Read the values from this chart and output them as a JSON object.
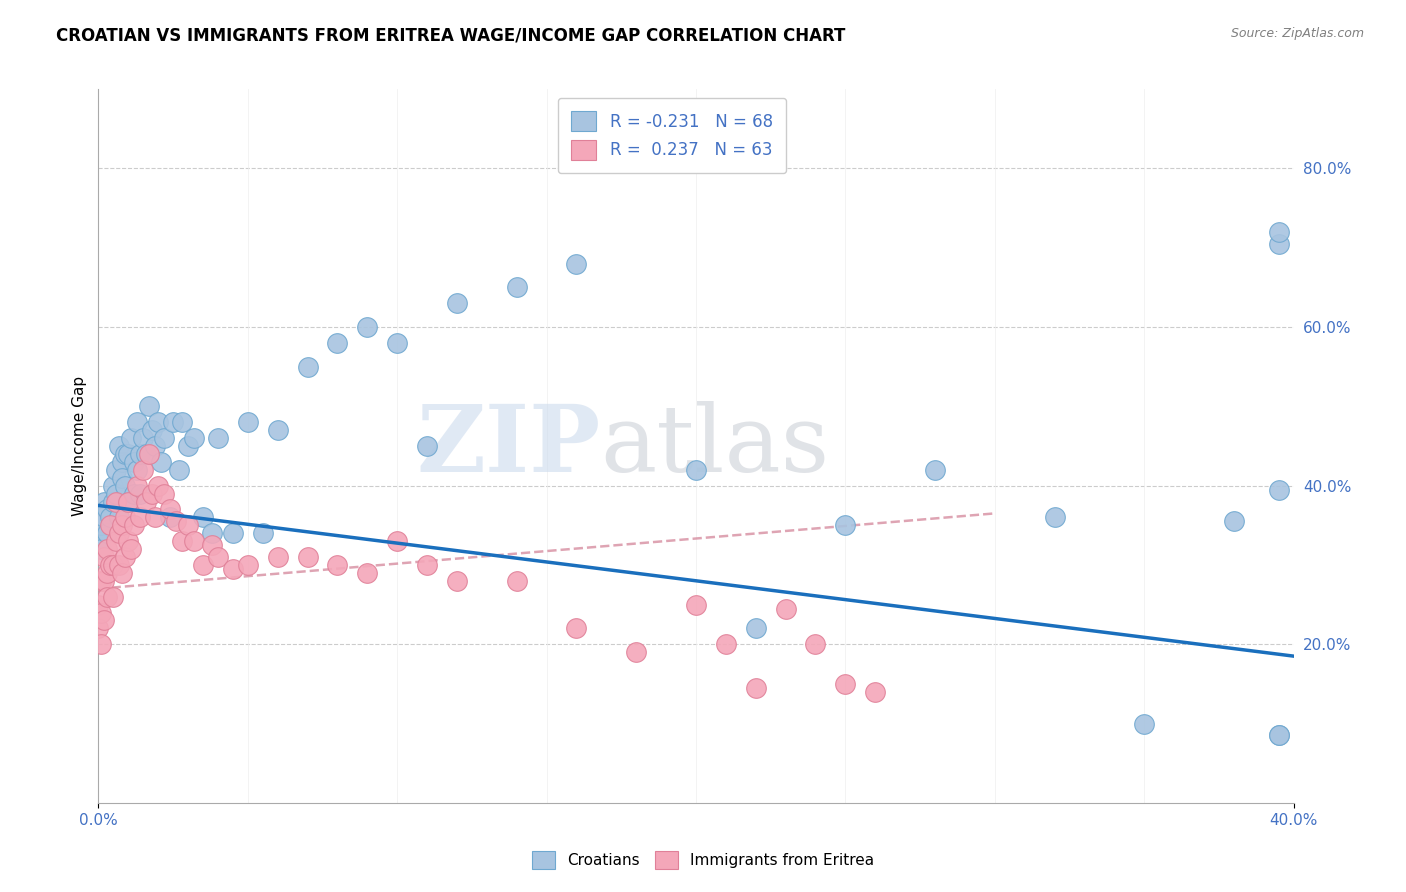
{
  "title": "CROATIAN VS IMMIGRANTS FROM ERITREA WAGE/INCOME GAP CORRELATION CHART",
  "source": "Source: ZipAtlas.com",
  "ylabel": "Wage/Income Gap",
  "croatian_color": "#a8c4e0",
  "eritrea_color": "#f4a7b9",
  "croatian_edge": "#6fa8d0",
  "eritrea_edge": "#e08098",
  "blue_line_color": "#1a6fbd",
  "pink_line_color": "#d4869a",
  "legend_croatians": "Croatians",
  "legend_eritrea": "Immigrants from Eritrea",
  "croatian_R": -0.231,
  "croatian_N": 68,
  "eritrea_R": 0.237,
  "eritrea_N": 63,
  "watermark_top": "ZIP",
  "watermark_bottom": "atlas",
  "xlim": [
    0.0,
    0.4
  ],
  "ylim": [
    0.0,
    0.9
  ],
  "right_yticks": [
    0.2,
    0.4,
    0.6,
    0.8
  ],
  "right_yticklabels": [
    "20.0%",
    "40.0%",
    "60.0%",
    "80.0%"
  ],
  "blue_line_x": [
    0.0,
    0.4
  ],
  "blue_line_y": [
    0.375,
    0.185
  ],
  "pink_line_x": [
    0.0,
    0.3
  ],
  "pink_line_y": [
    0.27,
    0.365
  ],
  "croatian_points_x": [
    0.0,
    0.001,
    0.001,
    0.002,
    0.002,
    0.003,
    0.003,
    0.004,
    0.005,
    0.005,
    0.006,
    0.006,
    0.007,
    0.007,
    0.008,
    0.008,
    0.009,
    0.009,
    0.01,
    0.01,
    0.011,
    0.012,
    0.012,
    0.013,
    0.013,
    0.014,
    0.014,
    0.015,
    0.016,
    0.017,
    0.018,
    0.019,
    0.02,
    0.021,
    0.022,
    0.024,
    0.025,
    0.027,
    0.028,
    0.03,
    0.032,
    0.035,
    0.038,
    0.04,
    0.045,
    0.05,
    0.055,
    0.06,
    0.07,
    0.08,
    0.09,
    0.1,
    0.11,
    0.12,
    0.14,
    0.16,
    0.2,
    0.22,
    0.25,
    0.28,
    0.32,
    0.35,
    0.38,
    0.395,
    0.395,
    0.395,
    0.395,
    0.395
  ],
  "croatian_points_y": [
    0.33,
    0.35,
    0.32,
    0.38,
    0.36,
    0.37,
    0.34,
    0.36,
    0.4,
    0.38,
    0.42,
    0.39,
    0.45,
    0.36,
    0.43,
    0.41,
    0.44,
    0.4,
    0.44,
    0.38,
    0.46,
    0.43,
    0.39,
    0.48,
    0.42,
    0.44,
    0.39,
    0.46,
    0.44,
    0.5,
    0.47,
    0.45,
    0.48,
    0.43,
    0.46,
    0.36,
    0.48,
    0.42,
    0.48,
    0.45,
    0.46,
    0.36,
    0.34,
    0.46,
    0.34,
    0.48,
    0.34,
    0.47,
    0.55,
    0.58,
    0.6,
    0.58,
    0.45,
    0.63,
    0.65,
    0.68,
    0.42,
    0.22,
    0.35,
    0.42,
    0.36,
    0.1,
    0.355,
    0.085,
    0.085,
    0.395,
    0.705,
    0.72
  ],
  "eritrea_points_x": [
    0.0,
    0.0,
    0.001,
    0.001,
    0.001,
    0.002,
    0.002,
    0.002,
    0.003,
    0.003,
    0.003,
    0.004,
    0.004,
    0.005,
    0.005,
    0.006,
    0.006,
    0.007,
    0.007,
    0.008,
    0.008,
    0.009,
    0.009,
    0.01,
    0.01,
    0.011,
    0.012,
    0.013,
    0.014,
    0.015,
    0.016,
    0.017,
    0.018,
    0.019,
    0.02,
    0.022,
    0.024,
    0.026,
    0.028,
    0.03,
    0.032,
    0.035,
    0.038,
    0.04,
    0.045,
    0.05,
    0.06,
    0.07,
    0.08,
    0.09,
    0.1,
    0.11,
    0.12,
    0.14,
    0.16,
    0.18,
    0.2,
    0.21,
    0.22,
    0.23,
    0.24,
    0.25,
    0.26
  ],
  "eritrea_points_y": [
    0.25,
    0.22,
    0.28,
    0.24,
    0.2,
    0.31,
    0.28,
    0.23,
    0.32,
    0.29,
    0.26,
    0.35,
    0.3,
    0.3,
    0.26,
    0.38,
    0.33,
    0.34,
    0.3,
    0.35,
    0.29,
    0.36,
    0.31,
    0.38,
    0.33,
    0.32,
    0.35,
    0.4,
    0.36,
    0.42,
    0.38,
    0.44,
    0.39,
    0.36,
    0.4,
    0.39,
    0.37,
    0.355,
    0.33,
    0.35,
    0.33,
    0.3,
    0.325,
    0.31,
    0.295,
    0.3,
    0.31,
    0.31,
    0.3,
    0.29,
    0.33,
    0.3,
    0.28,
    0.28,
    0.22,
    0.19,
    0.25,
    0.2,
    0.145,
    0.245,
    0.2,
    0.15,
    0.14
  ]
}
